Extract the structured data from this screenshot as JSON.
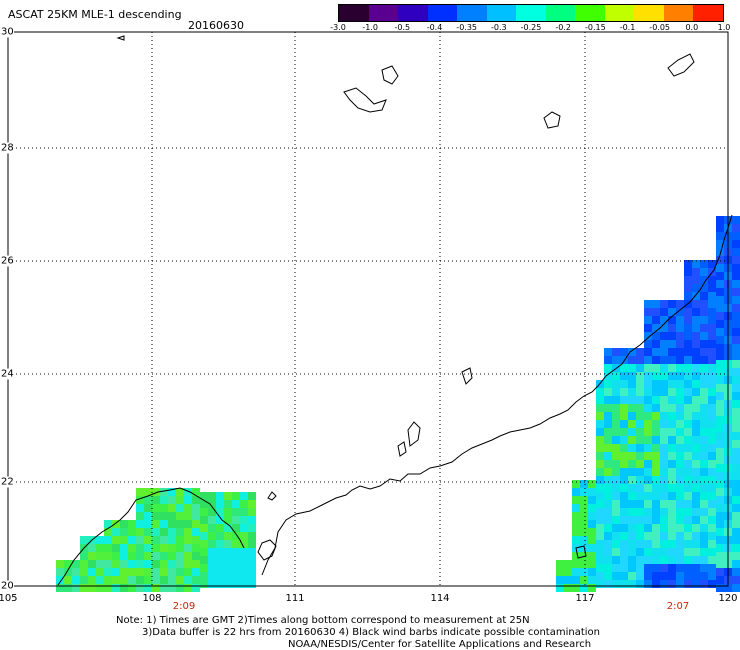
{
  "header": {
    "title": "ASCAT 25KM MLE-1 descending",
    "date": "20160630"
  },
  "legend": {
    "labels": [
      "-3.0",
      "-1.0",
      "-0.5",
      "-0.4",
      "-0.35",
      "-0.3",
      "-0.25",
      "-0.2",
      "-0.15",
      "-0.1",
      "-0.05",
      "0.0",
      "1.0"
    ],
    "colors": [
      "#2a0030",
      "#5a0090",
      "#3000c0",
      "#0030ff",
      "#0080ff",
      "#00c0ff",
      "#00ffe0",
      "#00ff80",
      "#40ff00",
      "#c0ff00",
      "#ffe000",
      "#ff8000",
      "#ff2000"
    ]
  },
  "axes": {
    "lon_labels": [
      "105",
      "108",
      "111",
      "114",
      "117",
      "120"
    ],
    "lat_labels": [
      "30",
      "28",
      "26",
      "24",
      "22",
      "20"
    ]
  },
  "times": [
    {
      "label": "2:09"
    },
    {
      "label": "2:07"
    }
  ],
  "notes": {
    "line1": "Note: 1) Times are GMT 2)Times along bottom correspond to measurement at 25N",
    "line2": "3)Data buffer is 22 hrs from 20160630 4) Black wind barbs indicate possible contamination",
    "line3": "NOAA/NESDIS/Center for Satellite Applications and Research"
  }
}
